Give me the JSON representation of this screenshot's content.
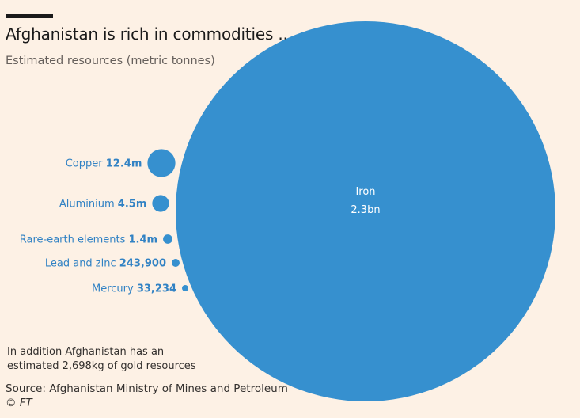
{
  "chart_data": {
    "type": "bubble",
    "title": "Afghanistan is rich in commodities ...",
    "subtitle": "Estimated resources (metric tonnes)",
    "unit": "metric tonnes",
    "items": [
      {
        "name": "Iron",
        "value": 2300000000,
        "value_label": "2.3bn"
      },
      {
        "name": "Copper",
        "value": 12400000,
        "value_label": "12.4m"
      },
      {
        "name": "Aluminium",
        "value": 4500000,
        "value_label": "4.5m"
      },
      {
        "name": "Rare-earth elements",
        "value": 1400000,
        "value_label": "1.4m"
      },
      {
        "name": "Lead and zinc",
        "value": 243900,
        "value_label": "243,900"
      },
      {
        "name": "Mercury",
        "value": 33234,
        "value_label": "33,234"
      }
    ],
    "colors": {
      "bubble": "#3690cf",
      "label": "#3182c4",
      "big_label": "#ffffff"
    }
  },
  "note": "In addition Afghanistan has an estimated 2,698kg of gold resources",
  "source": "Source: Afghanistan Ministry of Mines and Petroleum",
  "credit": "© FT"
}
